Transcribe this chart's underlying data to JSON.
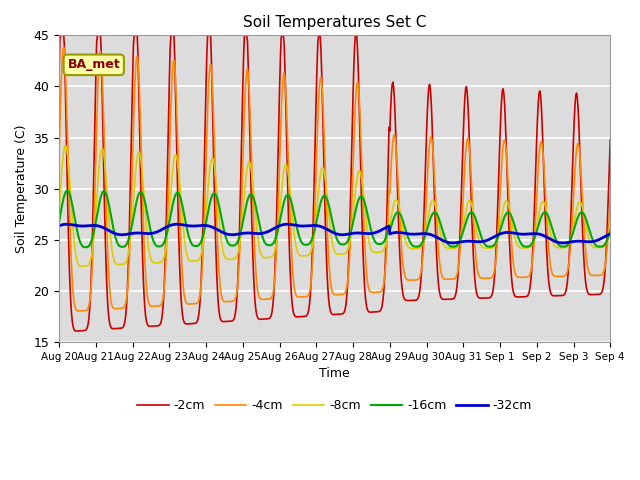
{
  "title": "Soil Temperatures Set C",
  "xlabel": "Time",
  "ylabel": "Soil Temperature (C)",
  "ylim": [
    15,
    45
  ],
  "xlim_start": 0,
  "xlim_end": 15.0,
  "bg_color": "#dcdcdc",
  "grid_color": "white",
  "legend_label": "BA_met",
  "series": [
    "-2cm",
    "-4cm",
    "-8cm",
    "-16cm",
    "-32cm"
  ],
  "colors": [
    "#cc0000",
    "#ff8800",
    "#ddcc00",
    "#00aa00",
    "#0000cc"
  ],
  "linewidths": [
    1.2,
    1.2,
    1.2,
    1.5,
    2.0
  ],
  "xtick_labels": [
    "Aug 20",
    "Aug 21",
    "Aug 22",
    "Aug 23",
    "Aug 24",
    "Aug 25",
    "Aug 26",
    "Aug 27",
    "Aug 28",
    "Aug 29",
    "Aug 30",
    "Aug 31",
    "Sep 1",
    "Sep 2",
    "Sep 3",
    "Sep 4"
  ],
  "ytick_labels": [
    15,
    20,
    25,
    30,
    35,
    40,
    45
  ]
}
